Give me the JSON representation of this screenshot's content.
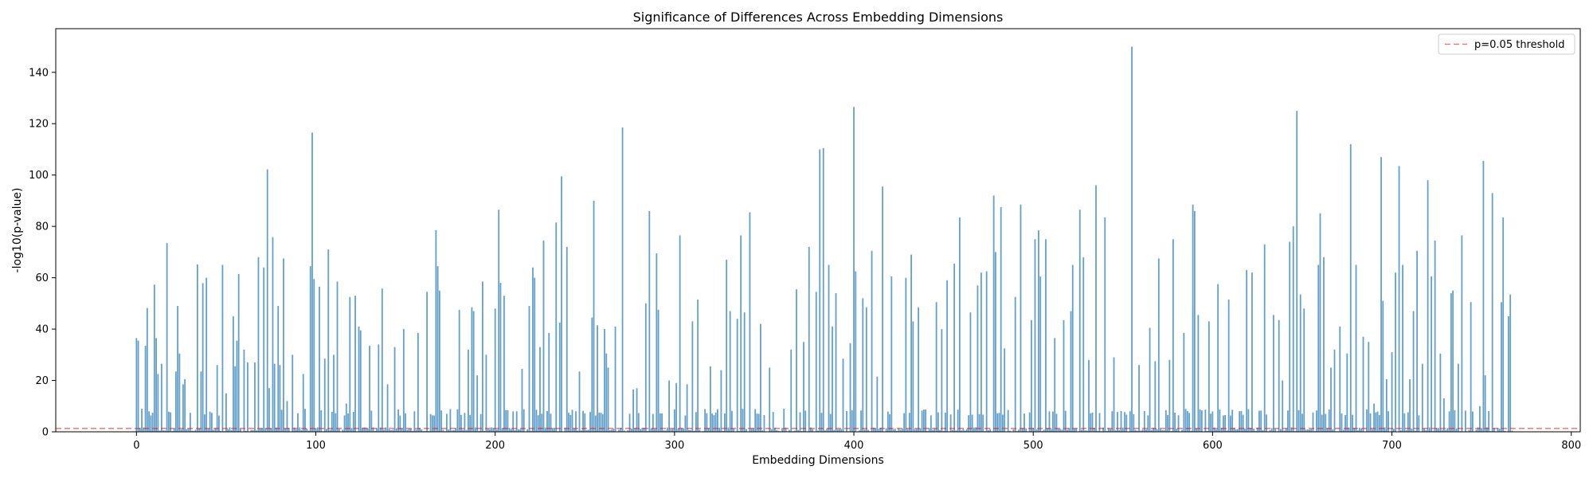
{
  "chart_data": {
    "type": "bar",
    "title": "Significance of Differences Across Embedding Dimensions",
    "xlabel": "Embedding Dimensions",
    "ylabel": "-log10(p-value)",
    "xlim": [
      -45,
      805
    ],
    "ylim": [
      0,
      157
    ],
    "xticks": [
      0,
      100,
      200,
      300,
      400,
      500,
      600,
      700,
      800
    ],
    "yticks": [
      0,
      20,
      40,
      60,
      80,
      100,
      120,
      140
    ],
    "grid": false,
    "legend_position": "top-right",
    "bar_color": "#1f77b4",
    "bar_opacity": 0.7,
    "threshold": {
      "value": 1.3,
      "label": "p=0.05 threshold",
      "color": "#ff0000"
    },
    "n_dimensions": 768,
    "highlight_values": [
      [
        0,
        36.5
      ],
      [
        1,
        35.5
      ],
      [
        5,
        33.5
      ],
      [
        6,
        48.2
      ],
      [
        10,
        57.3
      ],
      [
        11,
        36.5
      ],
      [
        12,
        22.5
      ],
      [
        14,
        26.5
      ],
      [
        17,
        73.5
      ],
      [
        22,
        23.5
      ],
      [
        23,
        49.0
      ],
      [
        24,
        30.5
      ],
      [
        26,
        18.5
      ],
      [
        27,
        20.5
      ],
      [
        34,
        65.2
      ],
      [
        36,
        23.5
      ],
      [
        37,
        57.9
      ],
      [
        39,
        60.0
      ],
      [
        45,
        26.0
      ],
      [
        48,
        65.0
      ],
      [
        50,
        15.0
      ],
      [
        54,
        45.0
      ],
      [
        55,
        25.5
      ],
      [
        56,
        35.5
      ],
      [
        57,
        61.5
      ],
      [
        60,
        32.0
      ],
      [
        62,
        27.0
      ],
      [
        66,
        27.0
      ],
      [
        68,
        68.0
      ],
      [
        71,
        64.0
      ],
      [
        73,
        102.2
      ],
      [
        74,
        17.0
      ],
      [
        76,
        75.8
      ],
      [
        77,
        26.5
      ],
      [
        79,
        49.0
      ],
      [
        80,
        26.0
      ],
      [
        82,
        67.5
      ],
      [
        84,
        12.0
      ],
      [
        87,
        30.0
      ],
      [
        93,
        22.5
      ],
      [
        97,
        64.5
      ],
      [
        98,
        116.5
      ],
      [
        99,
        59.5
      ],
      [
        102,
        56.5
      ],
      [
        105,
        28.5
      ],
      [
        107,
        71.0
      ],
      [
        110,
        30.0
      ],
      [
        112,
        58.5
      ],
      [
        117,
        11.0
      ],
      [
        119,
        52.5
      ],
      [
        122,
        53.0
      ],
      [
        124,
        41.0
      ],
      [
        125,
        39.5
      ],
      [
        130,
        33.5
      ],
      [
        135,
        34.0
      ],
      [
        137,
        55.8
      ],
      [
        140,
        18.5
      ],
      [
        144,
        33.0
      ],
      [
        149,
        40.0
      ],
      [
        157,
        38.5
      ],
      [
        162,
        54.5
      ],
      [
        167,
        78.5
      ],
      [
        168,
        64.5
      ],
      [
        169,
        55.0
      ],
      [
        173,
        7.0
      ],
      [
        180,
        47.5
      ],
      [
        185,
        32.0
      ],
      [
        187,
        48.5
      ],
      [
        188,
        47.0
      ],
      [
        190,
        22.0
      ],
      [
        193,
        58.5
      ],
      [
        195,
        30.0
      ],
      [
        200,
        48.0
      ],
      [
        202,
        86.5
      ],
      [
        203,
        58.0
      ],
      [
        205,
        53.0
      ],
      [
        212,
        8.0
      ],
      [
        215,
        24.5
      ],
      [
        219,
        49.0
      ],
      [
        221,
        64.0
      ],
      [
        222,
        60.0
      ],
      [
        225,
        33.0
      ],
      [
        227,
        74.5
      ],
      [
        230,
        38.5
      ],
      [
        234,
        81.5
      ],
      [
        236,
        42.5
      ],
      [
        237,
        99.5
      ],
      [
        240,
        72.0
      ],
      [
        247,
        23.5
      ],
      [
        254,
        44.5
      ],
      [
        255,
        90.0
      ],
      [
        257,
        41.5
      ],
      [
        261,
        40.0
      ],
      [
        262,
        30.5
      ],
      [
        263,
        25.0
      ],
      [
        267,
        41.0
      ],
      [
        271,
        118.5
      ],
      [
        277,
        16.5
      ],
      [
        279,
        17.0
      ],
      [
        284,
        50.0
      ],
      [
        286,
        86.0
      ],
      [
        290,
        69.5
      ],
      [
        291,
        47.5
      ],
      [
        297,
        20.0
      ],
      [
        301,
        19.0
      ],
      [
        303,
        76.5
      ],
      [
        307,
        18.5
      ],
      [
        310,
        43.0
      ],
      [
        313,
        51.5
      ],
      [
        320,
        25.5
      ],
      [
        326,
        24.0
      ],
      [
        329,
        67.0
      ],
      [
        331,
        47.0
      ],
      [
        335,
        44.0
      ],
      [
        337,
        76.5
      ],
      [
        339,
        46.5
      ],
      [
        342,
        85.5
      ],
      [
        348,
        42.0
      ],
      [
        353,
        25.0
      ],
      [
        361,
        9.0
      ],
      [
        365,
        32.0
      ],
      [
        368,
        55.5
      ],
      [
        372,
        35.0
      ],
      [
        375,
        72.0
      ],
      [
        379,
        54.5
      ],
      [
        381,
        110.0
      ],
      [
        383,
        110.5
      ],
      [
        386,
        65.0
      ],
      [
        388,
        41.0
      ],
      [
        390,
        54.0
      ],
      [
        394,
        28.5
      ],
      [
        398,
        34.5
      ],
      [
        400,
        126.5
      ],
      [
        401,
        62.5
      ],
      [
        405,
        52.0
      ],
      [
        407,
        48.5
      ],
      [
        410,
        70.5
      ],
      [
        413,
        21.5
      ],
      [
        416,
        95.5
      ],
      [
        421,
        60.5
      ],
      [
        429,
        60.0
      ],
      [
        432,
        69.0
      ],
      [
        433,
        43.0
      ],
      [
        436,
        48.5
      ],
      [
        446,
        50.5
      ],
      [
        449,
        40.0
      ],
      [
        452,
        59.0
      ],
      [
        456,
        65.5
      ],
      [
        459,
        83.5
      ],
      [
        465,
        46.5
      ],
      [
        469,
        57.0
      ],
      [
        471,
        62.0
      ],
      [
        474,
        62.5
      ],
      [
        478,
        92.0
      ],
      [
        479,
        70.0
      ],
      [
        482,
        87.5
      ],
      [
        484,
        32.5
      ],
      [
        490,
        52.5
      ],
      [
        493,
        88.5
      ],
      [
        499,
        43.5
      ],
      [
        501,
        75.0
      ],
      [
        503,
        78.5
      ],
      [
        504,
        60.5
      ],
      [
        507,
        75.0
      ],
      [
        512,
        36.5
      ],
      [
        517,
        43.5
      ],
      [
        521,
        47.0
      ],
      [
        522,
        65.0
      ],
      [
        526,
        86.5
      ],
      [
        528,
        68.0
      ],
      [
        531,
        28.0
      ],
      [
        535,
        96.0
      ],
      [
        540,
        83.5
      ],
      [
        545,
        29.0
      ],
      [
        555,
        150.0
      ],
      [
        559,
        26.0
      ],
      [
        565,
        40.5
      ],
      [
        568,
        27.5
      ],
      [
        570,
        67.5
      ],
      [
        576,
        28.0
      ],
      [
        578,
        75.0
      ],
      [
        584,
        38.5
      ],
      [
        589,
        88.5
      ],
      [
        590,
        86.0
      ],
      [
        592,
        45.5
      ],
      [
        598,
        43.0
      ],
      [
        603,
        57.5
      ],
      [
        609,
        51.5
      ],
      [
        619,
        63.0
      ],
      [
        622,
        62.0
      ],
      [
        629,
        73.0
      ],
      [
        634,
        45.5
      ],
      [
        637,
        43.5
      ],
      [
        639,
        20.0
      ],
      [
        643,
        74.0
      ],
      [
        645,
        80.0
      ],
      [
        647,
        125.0
      ],
      [
        649,
        53.5
      ],
      [
        651,
        48.0
      ],
      [
        659,
        65.0
      ],
      [
        660,
        85.0
      ],
      [
        662,
        68.0
      ],
      [
        666,
        25.0
      ],
      [
        668,
        32.0
      ],
      [
        671,
        41.0
      ],
      [
        675,
        30.5
      ],
      [
        677,
        112.0
      ],
      [
        680,
        65.0
      ],
      [
        684,
        37.0
      ],
      [
        687,
        35.0
      ],
      [
        690,
        11.0
      ],
      [
        694,
        107.0
      ],
      [
        695,
        51.0
      ],
      [
        697,
        20.5
      ],
      [
        700,
        31.0
      ],
      [
        702,
        62.0
      ],
      [
        704,
        103.5
      ],
      [
        706,
        65.0
      ],
      [
        710,
        20.5
      ],
      [
        712,
        47.0
      ],
      [
        714,
        70.5
      ],
      [
        717,
        26.5
      ],
      [
        720,
        98.0
      ],
      [
        722,
        60.5
      ],
      [
        724,
        74.5
      ],
      [
        727,
        30.5
      ],
      [
        729,
        13.0
      ],
      [
        733,
        54.0
      ],
      [
        734,
        55.0
      ],
      [
        737,
        26.5
      ],
      [
        739,
        76.5
      ],
      [
        744,
        50.5
      ],
      [
        749,
        10.0
      ],
      [
        751,
        105.5
      ],
      [
        752,
        22.0
      ],
      [
        756,
        93.0
      ],
      [
        761,
        50.5
      ],
      [
        762,
        83.5
      ],
      [
        765,
        45.0
      ],
      [
        766,
        53.5
      ]
    ]
  },
  "legend": {
    "label": "p=0.05 threshold"
  }
}
